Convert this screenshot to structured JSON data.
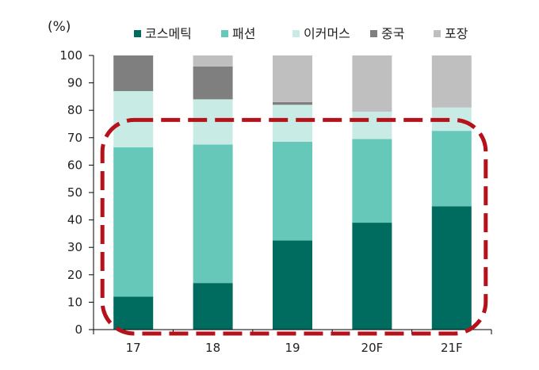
{
  "chart_data": {
    "type": "bar",
    "stacked": true,
    "unit_label": "(%)",
    "categories": [
      "17",
      "18",
      "19",
      "20F",
      "21F"
    ],
    "ylim": [
      0,
      100
    ],
    "yticks": [
      0,
      10,
      20,
      30,
      40,
      50,
      60,
      70,
      80,
      90,
      100
    ],
    "legend_position": "top",
    "series": [
      {
        "name": "코스메틱",
        "color": "#006b5f",
        "values": [
          12,
          17,
          32.5,
          39,
          45
        ]
      },
      {
        "name": "패션",
        "color": "#66c8b9",
        "values": [
          54.5,
          50.5,
          36,
          30.5,
          27.5
        ]
      },
      {
        "name": "이커머스",
        "color": "#c8ece5",
        "values": [
          20.5,
          16.5,
          13.5,
          10,
          8.5
        ]
      },
      {
        "name": "중국",
        "color": "#7f7f7f",
        "values": [
          13,
          12,
          1,
          0,
          0
        ]
      },
      {
        "name": "포장",
        "color": "#bfbfbf",
        "values": [
          0,
          4,
          17,
          20.5,
          19
        ]
      }
    ],
    "annotation": {
      "shape": "dashed-rounded-rectangle",
      "color": "#b5121b",
      "y_top": 73,
      "y_bottom": 0,
      "categories": [
        "17",
        "18",
        "19",
        "20F",
        "21F"
      ]
    }
  }
}
